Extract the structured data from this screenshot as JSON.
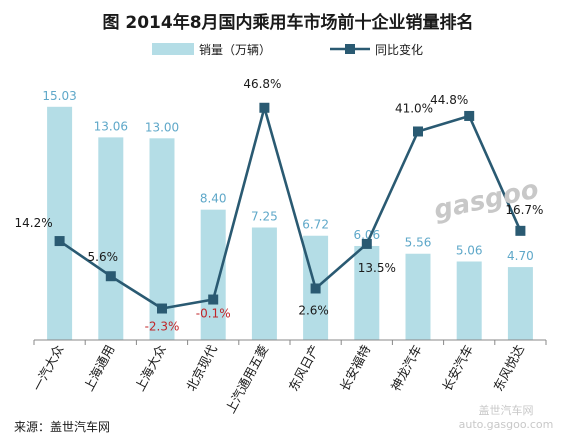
{
  "title": "图  2014年8月国内乘用车市场前十企业销量排名",
  "source": "来源：盖世汽车网",
  "watermark": {
    "brand": "gasgoo",
    "tagline": "盖世汽车网",
    "url": "auto.gasgoo.com"
  },
  "colors": {
    "bar": "#b4dde6",
    "bar_label": "#5fa8c9",
    "line": "#2a5a72",
    "negative_label": "#c0262a",
    "axis": "#888888"
  },
  "chart_data": {
    "type": "bar",
    "title": "图  2014年8月国内乘用车市场前十企业销量排名",
    "categories": [
      "一汽大众",
      "上海通用",
      "上海大众",
      "北京现代",
      "上汽通用五菱",
      "东风日产",
      "长安福特",
      "神龙汽车",
      "长安汽车",
      "东风悦达"
    ],
    "series": [
      {
        "name": "销量（万辆）",
        "type": "bar",
        "values": [
          15.03,
          13.06,
          13.0,
          8.4,
          7.25,
          6.72,
          6.06,
          5.56,
          5.06,
          4.7
        ],
        "labels": [
          "15.03",
          "13.06",
          "13.00",
          "8.40",
          "7.25",
          "6.72",
          "6.06",
          "5.56",
          "5.06",
          "4.70"
        ]
      },
      {
        "name": "同比变化",
        "type": "line",
        "values": [
          14.2,
          5.6,
          -2.3,
          -0.1,
          46.8,
          2.6,
          13.5,
          41.0,
          44.8,
          16.7
        ],
        "labels": [
          "14.2%",
          "5.6%",
          "-2.3%",
          "-0.1%",
          "46.8%",
          "2.6%",
          "13.5%",
          "41.0%",
          "44.8%",
          "16.7%"
        ]
      }
    ],
    "bar_axis_range": [
      0,
      16.5
    ],
    "line_axis_range": [
      -10,
      48.7
    ],
    "grid": false,
    "legend_position": "top"
  }
}
